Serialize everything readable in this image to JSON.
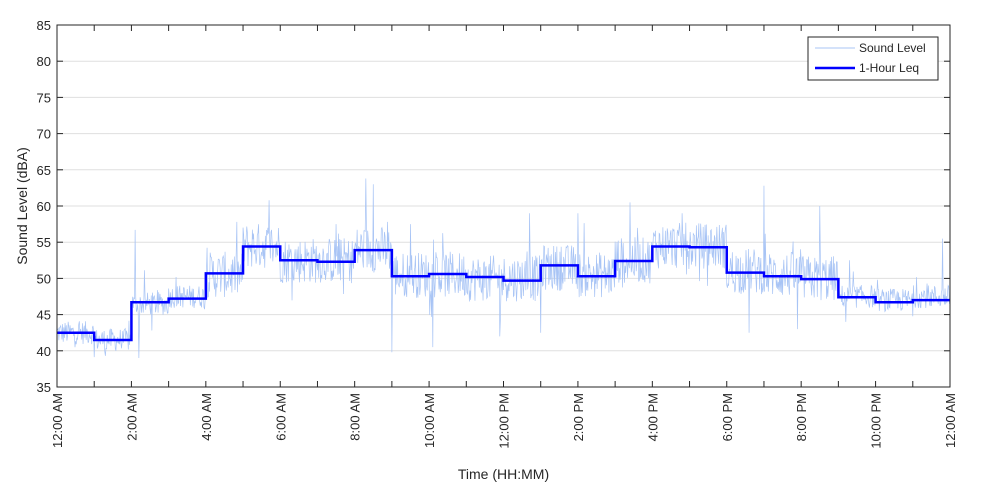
{
  "chart_data": {
    "type": "line",
    "title": "",
    "xlabel": "Time (HH:MM)",
    "ylabel": "Sound Level (dBA)",
    "ylim": [
      35,
      85
    ],
    "xlim_hours": [
      0,
      24
    ],
    "yticks": [
      35,
      40,
      45,
      50,
      55,
      60,
      65,
      70,
      75,
      80,
      85
    ],
    "xtick_hours": [
      0,
      2,
      4,
      6,
      8,
      10,
      12,
      14,
      16,
      18,
      20,
      22,
      24
    ],
    "xtick_labels": [
      "12:00 AM",
      "2:00 AM",
      "4:00 AM",
      "6:00 AM",
      "8:00 AM",
      "10:00 AM",
      "12:00 PM",
      "2:00 PM",
      "4:00 PM",
      "6:00 PM",
      "8:00 PM",
      "10:00 PM",
      "12:00 AM"
    ],
    "grid": "horizontal",
    "legend_position": "top-right",
    "series": [
      {
        "name": "Sound Level",
        "color": "#a8c4f5",
        "style": "thin-noisy",
        "hourly_base": [
          42.5,
          41.5,
          46.5,
          47.5,
          50.5,
          54.5,
          52.5,
          52.5,
          54,
          50.5,
          50.5,
          50,
          50,
          51.5,
          50.5,
          52.5,
          54.5,
          54.5,
          51,
          50.5,
          50,
          47.5,
          47,
          47.5
        ],
        "peaks": [
          {
            "h": 2.1,
            "v": 56.7
          },
          {
            "h": 5.7,
            "v": 60.8
          },
          {
            "h": 7.5,
            "v": 57.5
          },
          {
            "h": 8.3,
            "v": 63.8
          },
          {
            "h": 8.5,
            "v": 63.0
          },
          {
            "h": 9.5,
            "v": 57.5
          },
          {
            "h": 12.7,
            "v": 59.0
          },
          {
            "h": 14.0,
            "v": 59.0
          },
          {
            "h": 15.4,
            "v": 60.5
          },
          {
            "h": 16.8,
            "v": 59.0
          },
          {
            "h": 19.0,
            "v": 62.8
          },
          {
            "h": 20.5,
            "v": 60.0
          },
          {
            "h": 23.8,
            "v": 55.5
          }
        ],
        "dips": [
          {
            "h": 1.3,
            "v": 39.3
          },
          {
            "h": 2.2,
            "v": 39.0
          },
          {
            "h": 9.0,
            "v": 39.8
          },
          {
            "h": 10.1,
            "v": 40.5
          },
          {
            "h": 11.9,
            "v": 42.0
          },
          {
            "h": 13.0,
            "v": 42.5
          },
          {
            "h": 18.6,
            "v": 42.5
          },
          {
            "h": 19.9,
            "v": 43.0
          },
          {
            "h": 21.2,
            "v": 44.0
          }
        ]
      },
      {
        "name": "1-Hour Leq",
        "color": "#0000ff",
        "style": "step",
        "hours": [
          0,
          1,
          2,
          3,
          4,
          5,
          6,
          7,
          8,
          9,
          10,
          11,
          12,
          13,
          14,
          15,
          16,
          17,
          18,
          19,
          20,
          21,
          22,
          23
        ],
        "values": [
          42.5,
          41.5,
          46.7,
          47.2,
          50.7,
          54.4,
          52.5,
          52.3,
          53.9,
          50.3,
          50.6,
          50.2,
          49.7,
          51.8,
          50.3,
          52.4,
          54.4,
          54.3,
          50.8,
          50.3,
          49.9,
          47.4,
          46.7,
          47.0
        ]
      }
    ]
  }
}
